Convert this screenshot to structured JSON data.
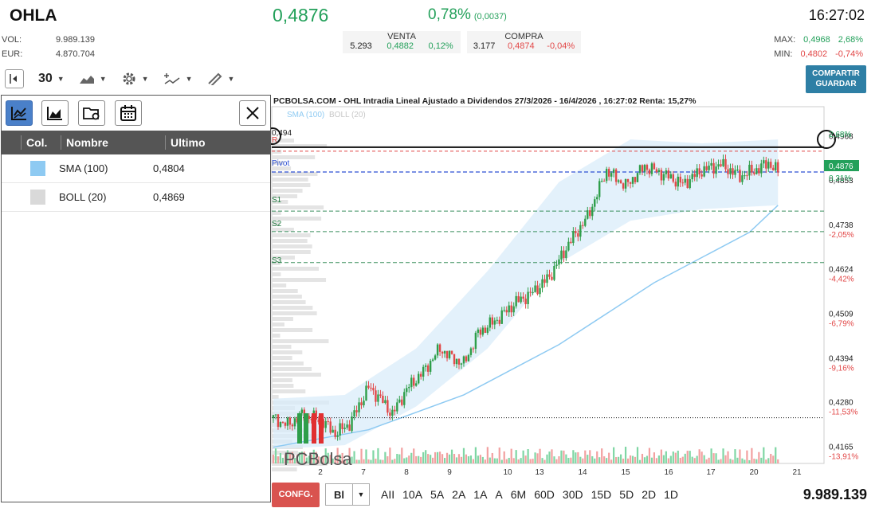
{
  "header": {
    "ticker": "OHLA",
    "price": "0,4876",
    "change_pct": "0,78%",
    "change_abs": "(0,0037)",
    "time": "16:27:02"
  },
  "stats": {
    "vol_label": "VOL:",
    "vol_value": "9.989.139",
    "eur_label": "EUR:",
    "eur_value": "4.870.704"
  },
  "venta": {
    "title": "VENTA",
    "qty": "5.293",
    "price": "0,4882",
    "pct": "0,12%"
  },
  "compra": {
    "title": "COMPRA",
    "qty": "3.177",
    "price": "0,4874",
    "pct": "-0,04%"
  },
  "range": {
    "max_label": "MAX:",
    "max_value": "0,4968",
    "max_pct": "2,68%",
    "min_label": "MIN:",
    "min_value": "0,4802",
    "min_pct": "-0,74%"
  },
  "toolbar": {
    "interval": "30",
    "share_line1": "COMPARTIR",
    "share_line2": "GUARDAR",
    "icons": [
      "collapse-panel-icon",
      "chart-type-icon",
      "settings-icon",
      "indicators-icon",
      "drawing-tools-icon"
    ]
  },
  "panel": {
    "tools": [
      "indicator-chart-icon",
      "area-chart-icon",
      "folder-settings-icon",
      "calendar-icon",
      "close-icon"
    ],
    "columns": [
      "Col.",
      "Nombre",
      "Ultimo"
    ],
    "rows": [
      {
        "color": "#8ecaf2",
        "name": "SMA (100)",
        "last": "0,4804"
      },
      {
        "color": "#d9d9d9",
        "name": "BOLL (20)",
        "last": "0,4869"
      }
    ]
  },
  "chart": {
    "title": "PCBOLSA.COM - OHL Intradia Lineal Ajustado a Dividendos 27/3/2026 - 16/4/2026 , 16:27:02 Renta: 15,27%",
    "legend_sma": "SMA (100)",
    "legend_boll": "BOLL (20)",
    "watermark": "PCBolsa",
    "line_label_top": "0,494",
    "line_label_r": "R",
    "pivot_label": "Pivot",
    "s1_label": "S1",
    "s2_label": "S2",
    "s3_label": "S3",
    "price_tag": "0,4876",
    "price_tag_pct": "0,31%",
    "max_tag": "2,68%"
  },
  "chart_data": {
    "type": "candlestick",
    "title": "PCBOLSA.COM - OHL Intradia Lineal Ajustado a Dividendos 27/3/2026 - 16/4/2026 , 16:27:02 Renta: 15,27%",
    "x_ticks": [
      "2",
      "7",
      "8",
      "9",
      "10",
      "13",
      "14",
      "15",
      "16",
      "17",
      "20",
      "21"
    ],
    "y_ticks": [
      {
        "value": "0,4968",
        "pct": ""
      },
      {
        "value": "0,4853",
        "pct": ""
      },
      {
        "value": "0,4738",
        "pct": "-2,05%"
      },
      {
        "value": "0,4624",
        "pct": "-4,42%"
      },
      {
        "value": "0,4509",
        "pct": "-6,79%"
      },
      {
        "value": "0,4394",
        "pct": "-9,16%"
      },
      {
        "value": "0,4280",
        "pct": "-11,53%"
      },
      {
        "value": "0,4165",
        "pct": "-13,91%"
      }
    ],
    "ylim": [
      0.416,
      0.4985
    ],
    "levels": {
      "resistance": 0.494,
      "pivot": 0.4876,
      "s1": 0.4775,
      "s2": 0.4722,
      "s3": 0.4642,
      "reference": 0.4241
    },
    "close_path": [
      [
        0,
        0.424
      ],
      [
        6,
        0.4222
      ],
      [
        12,
        0.4248
      ],
      [
        20,
        0.4235
      ],
      [
        26,
        0.42
      ],
      [
        32,
        0.4225
      ],
      [
        40,
        0.432
      ],
      [
        45,
        0.429
      ],
      [
        50,
        0.425
      ],
      [
        56,
        0.4315
      ],
      [
        63,
        0.436
      ],
      [
        70,
        0.442
      ],
      [
        74,
        0.44
      ],
      [
        80,
        0.438
      ],
      [
        86,
        0.446
      ],
      [
        94,
        0.4495
      ],
      [
        102,
        0.454
      ],
      [
        108,
        0.456
      ],
      [
        116,
        0.4605
      ],
      [
        124,
        0.469
      ],
      [
        132,
        0.476
      ],
      [
        140,
        0.488
      ],
      [
        148,
        0.484
      ],
      [
        156,
        0.489
      ],
      [
        164,
        0.487
      ],
      [
        172,
        0.4845
      ],
      [
        180,
        0.488
      ],
      [
        188,
        0.4895
      ],
      [
        196,
        0.4865
      ],
      [
        204,
        0.4885
      ],
      [
        208,
        0.49
      ],
      [
        212,
        0.4876
      ]
    ],
    "x_domain": [
      0,
      230
    ],
    "sma_path": [
      [
        0,
        0.4165
      ],
      [
        40,
        0.421
      ],
      [
        80,
        0.43
      ],
      [
        120,
        0.443
      ],
      [
        160,
        0.459
      ],
      [
        200,
        0.472
      ],
      [
        212,
        0.479
      ]
    ],
    "boll_upper": [
      [
        0,
        0.429
      ],
      [
        30,
        0.43
      ],
      [
        60,
        0.442
      ],
      [
        90,
        0.462
      ],
      [
        120,
        0.485
      ],
      [
        150,
        0.496
      ],
      [
        180,
        0.495
      ],
      [
        212,
        0.496
      ]
    ],
    "boll_lower": [
      [
        0,
        0.416
      ],
      [
        30,
        0.417
      ],
      [
        60,
        0.427
      ],
      [
        90,
        0.442
      ],
      [
        120,
        0.464
      ],
      [
        150,
        0.475
      ],
      [
        180,
        0.478
      ],
      [
        212,
        0.479
      ]
    ]
  },
  "bottom": {
    "config": "CONFG.",
    "mode": "Bl",
    "periods": [
      "AII",
      "10A",
      "5A",
      "2A",
      "1A",
      "A",
      "6M",
      "60D",
      "30D",
      "15D",
      "5D",
      "2D",
      "1D"
    ],
    "volume_total": "9.989.139"
  }
}
